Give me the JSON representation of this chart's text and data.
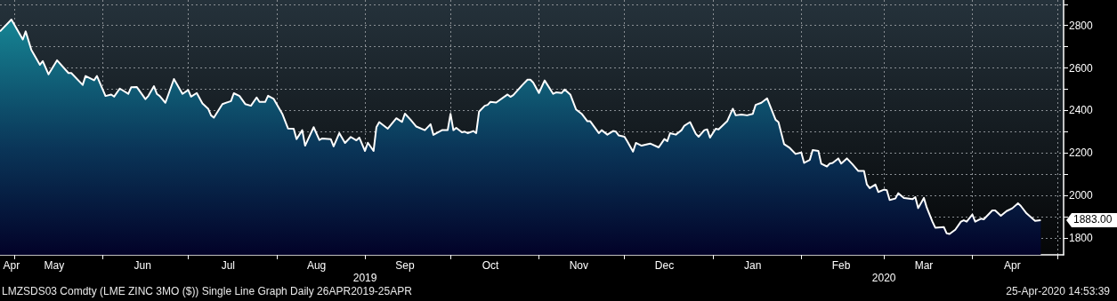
{
  "chart_data": {
    "type": "area",
    "xlim": [
      "2019-04-26",
      "2020-05-03"
    ],
    "ylim": [
      1720,
      2920
    ],
    "yticks": [
      1800,
      {
        "value": 1900,
        "label": null
      },
      2000,
      {
        "value": 2100,
        "label": null
      },
      2200,
      {
        "value": 2300,
        "label": null
      },
      2400,
      {
        "value": 2500,
        "label": null
      },
      2600,
      {
        "value": 2700,
        "label": null
      },
      2800,
      {
        "value": 2900,
        "label": null
      }
    ],
    "xticks": [
      {
        "value": "2019-05-01",
        "label": null
      },
      {
        "value": "2019-06-01",
        "label": null
      },
      {
        "value": "2019-07-01",
        "label": null
      },
      {
        "value": "2019-08-01",
        "label": null
      },
      {
        "value": "2019-09-01",
        "label": null
      },
      {
        "value": "2019-10-01",
        "label": null
      },
      {
        "value": "2019-11-01",
        "label": null
      },
      {
        "value": "2019-12-01",
        "label": null
      },
      {
        "value": "2020-01-01",
        "label": null
      },
      {
        "value": "2020-02-01",
        "label": null
      },
      {
        "value": "2020-03-01",
        "label": null
      },
      {
        "value": "2020-04-01",
        "label": null
      },
      {
        "value": "2020-05-01",
        "label": null
      },
      {
        "value": "2019-04-30",
        "label": "Apr"
      },
      {
        "value": "2019-05-15",
        "label": "May"
      },
      {
        "value": "2019-06-15",
        "label": "Jun"
      },
      {
        "value": "2019-07-15",
        "label": "Jul"
      },
      {
        "value": "2019-08-15",
        "label": "Aug"
      },
      {
        "value": "2019-09-15",
        "label": "Sep"
      },
      {
        "value": "2019-10-15",
        "label": "Oct"
      },
      {
        "value": "2019-11-15",
        "label": "Nov"
      },
      {
        "value": "2019-12-15",
        "label": "Dec"
      },
      {
        "value": "2020-01-15",
        "label": "Jan"
      },
      {
        "value": "2020-02-15",
        "label": "Feb"
      },
      {
        "value": "2020-03-15",
        "label": "Mar"
      },
      {
        "value": "2020-04-15",
        "label": "Apr"
      }
    ],
    "x2lim": [
      "2019-04-26",
      "2020-05-03"
    ],
    "x2ticks": [
      {
        "value": "2019-09-01",
        "label": "2019"
      },
      {
        "value": "2020-03-01",
        "label": "2020"
      }
    ],
    "grid": true,
    "annotations": [
      "1883.00",
      "LMZSDS03 Comdty (LME ZINC 3MO ($)) Single Line Graph Daily 26APR2019-25APR",
      "25-Apr-2020 14:53:39"
    ],
    "series": [
      {
        "color": "#ffffff",
        "x": [
          "2019-04-26",
          "2019-04-30",
          "2019-05-04",
          "2019-05-05",
          "2019-05-07",
          "2019-05-10",
          "2019-05-11",
          "2019-05-13",
          "2019-05-16",
          "2019-05-20",
          "2019-05-21",
          "2019-05-25",
          "2019-05-26",
          "2019-05-29",
          "2019-05-30",
          "2019-06-02",
          "2019-06-04",
          "2019-06-05",
          "2019-06-07",
          "2019-06-10",
          "2019-06-11",
          "2019-06-13",
          "2019-06-16",
          "2019-06-17",
          "2019-06-19",
          "2019-06-20",
          "2019-06-21",
          "2019-06-23",
          "2019-06-26",
          "2019-06-29",
          "2019-07-01",
          "2019-07-02",
          "2019-07-04",
          "2019-07-06",
          "2019-07-08",
          "2019-07-09",
          "2019-07-10",
          "2019-07-13",
          "2019-07-16",
          "2019-07-17",
          "2019-07-19",
          "2019-07-21",
          "2019-07-23",
          "2019-07-25",
          "2019-07-26",
          "2019-07-28",
          "2019-07-29",
          "2019-07-31",
          "2019-08-03",
          "2019-08-05",
          "2019-08-07",
          "2019-08-08",
          "2019-08-10",
          "2019-08-11",
          "2019-08-14",
          "2019-08-16",
          "2019-08-17",
          "2019-08-20",
          "2019-08-21",
          "2019-08-23",
          "2019-08-25",
          "2019-08-27",
          "2019-08-29",
          "2019-08-30",
          "2019-09-01",
          "2019-09-02",
          "2019-09-04",
          "2019-09-05",
          "2019-09-06",
          "2019-09-09",
          "2019-09-12",
          "2019-09-14",
          "2019-09-15",
          "2019-09-17",
          "2019-09-19",
          "2019-09-22",
          "2019-09-24",
          "2019-09-25",
          "2019-09-28",
          "2019-09-30",
          "2019-10-01",
          "2019-10-02",
          "2019-10-03",
          "2019-10-05",
          "2019-10-06",
          "2019-10-07",
          "2019-10-09",
          "2019-10-10",
          "2019-10-11",
          "2019-10-13",
          "2019-10-14",
          "2019-10-15",
          "2019-10-17",
          "2019-10-21",
          "2019-10-22",
          "2019-10-23",
          "2019-10-26",
          "2019-10-28",
          "2019-10-29",
          "2019-10-30",
          "2019-11-01",
          "2019-11-03",
          "2019-11-06",
          "2019-11-07",
          "2019-11-09",
          "2019-11-10",
          "2019-11-12",
          "2019-11-14",
          "2019-11-16",
          "2019-11-18",
          "2019-11-19",
          "2019-11-22",
          "2019-11-23",
          "2019-11-25",
          "2019-11-27",
          "2019-11-28",
          "2019-11-29",
          "2019-12-01",
          "2019-12-02",
          "2019-12-04",
          "2019-12-05",
          "2019-12-07",
          "2019-12-10",
          "2019-12-13",
          "2019-12-15",
          "2019-12-16",
          "2019-12-17",
          "2019-12-19",
          "2019-12-21",
          "2019-12-22",
          "2019-12-24",
          "2019-12-26",
          "2019-12-27",
          "2019-12-29",
          "2019-12-30",
          "2019-12-31",
          "2020-01-02",
          "2020-01-03",
          "2020-01-06",
          "2020-01-08",
          "2020-01-09",
          "2020-01-11",
          "2020-01-13",
          "2020-01-15",
          "2020-01-16",
          "2020-01-18",
          "2020-01-20",
          "2020-01-23",
          "2020-01-24",
          "2020-01-26",
          "2020-01-28",
          "2020-01-30",
          "2020-02-01",
          "2020-02-02",
          "2020-02-04",
          "2020-02-05",
          "2020-02-07",
          "2020-02-08",
          "2020-02-10",
          "2020-02-11",
          "2020-02-12",
          "2020-02-14",
          "2020-02-15",
          "2020-02-17",
          "2020-02-19",
          "2020-02-21",
          "2020-02-23",
          "2020-02-24",
          "2020-02-25",
          "2020-02-27",
          "2020-02-28",
          "2020-03-01",
          "2020-03-02",
          "2020-03-03",
          "2020-03-05",
          "2020-03-06",
          "2020-03-08",
          "2020-03-11",
          "2020-03-12",
          "2020-03-13",
          "2020-03-15",
          "2020-03-16",
          "2020-03-18",
          "2020-03-19",
          "2020-03-22",
          "2020-03-23",
          "2020-03-24",
          "2020-03-26",
          "2020-03-28",
          "2020-03-29",
          "2020-03-30",
          "2020-04-01",
          "2020-04-02",
          "2020-04-04",
          "2020-04-05",
          "2020-04-08",
          "2020-04-09",
          "2020-04-11",
          "2020-04-13",
          "2020-04-15",
          "2020-04-17",
          "2020-04-18",
          "2020-04-20",
          "2020-04-23",
          "2020-04-25"
        ],
        "values": [
          2772,
          2828,
          2734,
          2772,
          2685,
          2615,
          2632,
          2570,
          2636,
          2576,
          2576,
          2520,
          2562,
          2542,
          2562,
          2468,
          2475,
          2465,
          2503,
          2478,
          2509,
          2510,
          2453,
          2468,
          2514,
          2478,
          2468,
          2436,
          2548,
          2478,
          2496,
          2465,
          2482,
          2433,
          2408,
          2377,
          2366,
          2430,
          2444,
          2481,
          2468,
          2430,
          2422,
          2461,
          2440,
          2440,
          2469,
          2454,
          2384,
          2315,
          2314,
          2265,
          2307,
          2234,
          2321,
          2261,
          2268,
          2265,
          2231,
          2293,
          2247,
          2275,
          2259,
          2272,
          2209,
          2248,
          2209,
          2321,
          2345,
          2314,
          2363,
          2346,
          2385,
          2356,
          2324,
          2307,
          2335,
          2285,
          2307,
          2307,
          2384,
          2307,
          2318,
          2297,
          2300,
          2293,
          2303,
          2293,
          2394,
          2422,
          2426,
          2440,
          2437,
          2475,
          2464,
          2472,
          2517,
          2545,
          2545,
          2531,
          2482,
          2541,
          2478,
          2485,
          2482,
          2499,
          2475,
          2405,
          2384,
          2349,
          2349,
          2293,
          2307,
          2286,
          2303,
          2300,
          2282,
          2276,
          2254,
          2206,
          2247,
          2234,
          2244,
          2226,
          2265,
          2255,
          2293,
          2286,
          2307,
          2328,
          2345,
          2290,
          2276,
          2307,
          2311,
          2272,
          2314,
          2311,
          2349,
          2408,
          2377,
          2381,
          2377,
          2384,
          2426,
          2436,
          2457,
          2356,
          2345,
          2241,
          2223,
          2195,
          2202,
          2153,
          2167,
          2213,
          2209,
          2149,
          2136,
          2150,
          2153,
          2174,
          2150,
          2174,
          2146,
          2115,
          2115,
          2052,
          2034,
          2051,
          2016,
          2027,
          2024,
          1978,
          1985,
          2010,
          1988,
          1982,
          1992,
          1940,
          1988,
          1943,
          1876,
          1848,
          1851,
          1821,
          1818,
          1838,
          1876,
          1883,
          1876,
          1910,
          1876,
          1890,
          1887,
          1929,
          1929,
          1904,
          1926,
          1939,
          1963,
          1950,
          1915,
          1880,
          1883
        ]
      }
    ]
  }
}
